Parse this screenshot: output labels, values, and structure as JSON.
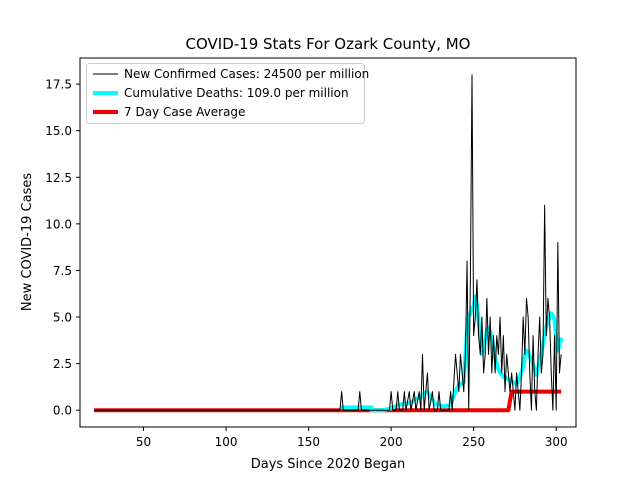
{
  "chart_data": {
    "type": "line",
    "title": "COVID-19 Stats For Ozark County, MO",
    "xlabel": "Days Since 2020 Began",
    "ylabel": "New COVID-19 Cases",
    "xlim": [
      11.5,
      312
    ],
    "ylim": [
      -0.9,
      18.9
    ],
    "xticks": [
      50,
      100,
      150,
      200,
      250,
      300
    ],
    "yticks": [
      0.0,
      2.5,
      5.0,
      7.5,
      10.0,
      12.5,
      15.0,
      17.5
    ],
    "xtick_labels": [
      "50",
      "100",
      "150",
      "200",
      "250",
      "300"
    ],
    "ytick_labels": [
      "0.0",
      "2.5",
      "5.0",
      "7.5",
      "10.0",
      "12.5",
      "15.0",
      "17.5"
    ],
    "grid": false,
    "legend_position": "top-left",
    "series": [
      {
        "name": "New Confirmed Cases: 24500 per million",
        "color": "#000000",
        "points": [
          [
            20,
            0
          ],
          [
            169,
            0
          ],
          [
            170,
            1
          ],
          [
            171,
            0
          ],
          [
            180,
            0
          ],
          [
            181,
            1
          ],
          [
            182,
            0
          ],
          [
            199,
            0
          ],
          [
            200,
            1
          ],
          [
            201,
            0
          ],
          [
            203,
            0
          ],
          [
            204,
            1
          ],
          [
            205,
            0
          ],
          [
            207,
            0
          ],
          [
            208,
            1
          ],
          [
            209,
            0
          ],
          [
            211,
            1
          ],
          [
            212,
            0
          ],
          [
            214,
            1
          ],
          [
            215,
            0
          ],
          [
            217,
            1
          ],
          [
            218,
            0
          ],
          [
            219,
            3
          ],
          [
            220,
            0
          ],
          [
            222,
            2
          ],
          [
            223,
            0
          ],
          [
            225,
            1
          ],
          [
            226,
            0
          ],
          [
            228,
            0
          ],
          [
            229,
            1
          ],
          [
            230,
            0
          ],
          [
            235,
            0
          ],
          [
            236,
            1
          ],
          [
            237,
            0
          ],
          [
            239,
            3
          ],
          [
            240,
            2
          ],
          [
            241,
            1
          ],
          [
            242,
            3
          ],
          [
            243,
            2
          ],
          [
            244,
            1
          ],
          [
            245,
            3
          ],
          [
            246,
            8
          ],
          [
            247,
            0
          ],
          [
            248,
            7
          ],
          [
            249,
            18
          ],
          [
            250,
            4
          ],
          [
            251,
            5
          ],
          [
            252,
            7
          ],
          [
            253,
            4
          ],
          [
            254,
            3
          ],
          [
            255,
            5
          ],
          [
            256,
            2
          ],
          [
            257,
            3
          ],
          [
            258,
            6
          ],
          [
            259,
            3
          ],
          [
            260,
            5
          ],
          [
            261,
            2
          ],
          [
            262,
            4
          ],
          [
            263,
            2
          ],
          [
            264,
            4
          ],
          [
            265,
            3
          ],
          [
            266,
            5
          ],
          [
            267,
            2
          ],
          [
            268,
            4
          ],
          [
            269,
            1
          ],
          [
            270,
            3
          ],
          [
            271,
            2
          ],
          [
            272,
            1
          ],
          [
            273,
            2
          ],
          [
            274,
            1
          ],
          [
            275,
            0
          ],
          [
            276,
            2
          ],
          [
            277,
            1
          ],
          [
            278,
            0
          ],
          [
            279,
            2
          ],
          [
            280,
            5
          ],
          [
            281,
            3
          ],
          [
            282,
            6
          ],
          [
            283,
            5
          ],
          [
            284,
            2
          ],
          [
            285,
            0
          ],
          [
            286,
            4
          ],
          [
            287,
            1
          ],
          [
            288,
            0
          ],
          [
            289,
            3
          ],
          [
            290,
            5
          ],
          [
            291,
            2
          ],
          [
            292,
            3
          ],
          [
            293,
            11
          ],
          [
            294,
            4
          ],
          [
            295,
            6
          ],
          [
            296,
            5
          ],
          [
            297,
            2
          ],
          [
            298,
            0
          ],
          [
            299,
            4
          ],
          [
            300,
            0
          ],
          [
            301,
            9
          ],
          [
            302,
            2
          ],
          [
            303,
            3
          ]
        ]
      },
      {
        "name": "Cumulative Deaths: 109.0 per million",
        "color": "#00ffff",
        "points": [
          [
            170,
            0.15
          ],
          [
            188,
            0.15
          ],
          [
            188,
            0
          ],
          [
            195,
            0
          ],
          [
            200,
            0.1
          ],
          [
            205,
            0.3
          ],
          [
            212,
            0.4
          ],
          [
            215,
            0.6
          ],
          [
            218,
            0.7
          ],
          [
            220,
            0.9
          ],
          [
            222,
            1.0
          ],
          [
            224,
            0.7
          ],
          [
            227,
            0.3
          ],
          [
            232,
            0.2
          ],
          [
            236,
            0.3
          ],
          [
            238,
            0.8
          ],
          [
            240,
            1.2
          ],
          [
            242,
            1.4
          ],
          [
            244,
            1.5
          ],
          [
            246,
            4.3
          ],
          [
            247,
            5.0
          ],
          [
            249,
            5.4
          ],
          [
            250,
            5.6
          ],
          [
            251,
            6.1
          ],
          [
            252,
            5.7
          ],
          [
            253,
            4.8
          ],
          [
            255,
            3.0
          ],
          [
            256,
            3.3
          ],
          [
            258,
            4.3
          ],
          [
            259,
            4.4
          ],
          [
            260,
            4.2
          ],
          [
            261,
            3.9
          ],
          [
            263,
            2.8
          ],
          [
            265,
            2.2
          ],
          [
            266,
            2.0
          ],
          [
            268,
            1.8
          ],
          [
            270,
            1.7
          ],
          [
            272,
            1.6
          ],
          [
            274,
            1.5
          ],
          [
            276,
            1.4
          ],
          [
            278,
            1.8
          ],
          [
            280,
            2.3
          ],
          [
            281,
            2.9
          ],
          [
            282,
            3.2
          ],
          [
            283,
            3.1
          ],
          [
            285,
            2.7
          ],
          [
            287,
            2.2
          ],
          [
            288,
            1.9
          ],
          [
            290,
            2.6
          ],
          [
            291,
            3.1
          ],
          [
            293,
            4.0
          ],
          [
            294,
            4.5
          ],
          [
            296,
            5.0
          ],
          [
            297,
            5.2
          ],
          [
            298,
            5.1
          ],
          [
            299,
            4.8
          ],
          [
            300,
            3.9
          ],
          [
            301,
            3.2
          ],
          [
            302,
            3.5
          ],
          [
            303,
            3.8
          ]
        ]
      },
      {
        "name": "7 Day Case Average",
        "color": "#ee0000",
        "points": [
          [
            20,
            0
          ],
          [
            271,
            0
          ],
          [
            272,
            0.5
          ],
          [
            273,
            1.0
          ],
          [
            303,
            1.0
          ]
        ]
      }
    ]
  }
}
